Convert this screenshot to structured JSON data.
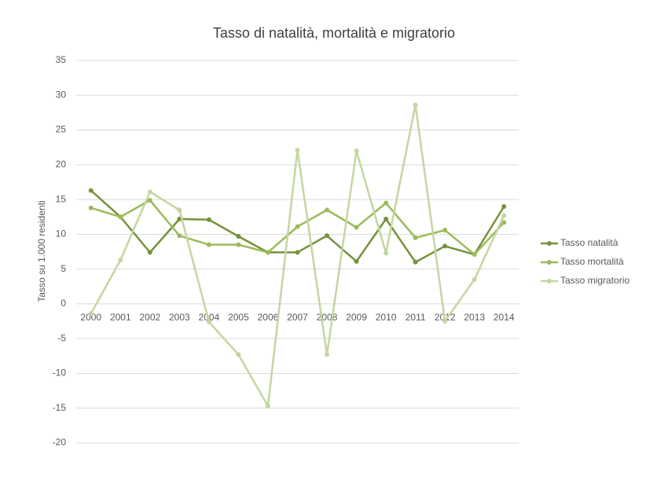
{
  "chart_data": {
    "type": "line",
    "title": "Tasso di natalità, mortalità e migratorio",
    "y_label": "Tasso su 1.000 residenti",
    "categories": [
      "2000",
      "2001",
      "2002",
      "2003",
      "2004",
      "2005",
      "2006",
      "2007",
      "2008",
      "2009",
      "2010",
      "2011",
      "2012",
      "2013",
      "2014"
    ],
    "series": [
      {
        "name": "Tasso natalità",
        "color": "#77923c",
        "values": [
          16.3,
          12.5,
          7.4,
          12.2,
          12.1,
          9.7,
          7.4,
          7.4,
          9.8,
          6.1,
          12.2,
          6.0,
          8.3,
          7.1,
          14.0
        ]
      },
      {
        "name": "Tasso mortalità",
        "color": "#9bbb59",
        "values": [
          13.8,
          12.5,
          14.9,
          9.8,
          8.5,
          8.5,
          7.4,
          11.1,
          13.5,
          11.0,
          14.5,
          9.5,
          10.6,
          7.1,
          11.7
        ]
      },
      {
        "name": "Tasso migratorio",
        "color": "#c4d6a0",
        "values": [
          -1.4,
          6.3,
          16.1,
          13.5,
          -2.6,
          -7.3,
          -14.7,
          22.1,
          -7.3,
          22.0,
          7.3,
          28.6,
          -2.5,
          3.5,
          12.7
        ]
      }
    ],
    "ylim": [
      -20,
      35
    ],
    "yticks": [
      -20,
      -15,
      -10,
      -5,
      0,
      5,
      10,
      15,
      20,
      25,
      30,
      35
    ],
    "grid": true,
    "legend": "right"
  }
}
